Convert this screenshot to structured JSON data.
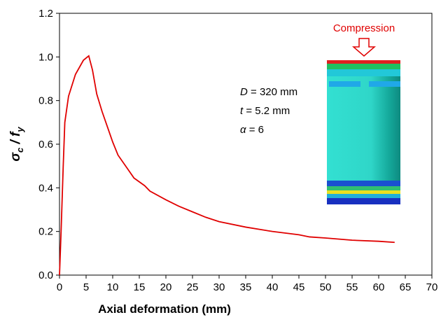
{
  "chart_data": {
    "type": "line",
    "x_label": "Axial deformation (mm)",
    "y_label": {
      "symbol": "σ",
      "sub": "c",
      "sep": " / ",
      "symbol2": "f",
      "sub2": "y"
    },
    "xlim": [
      0,
      70
    ],
    "xticks": [
      0,
      5,
      10,
      15,
      20,
      25,
      30,
      35,
      40,
      45,
      50,
      55,
      60,
      65,
      70
    ],
    "ylim": [
      0,
      1.2
    ],
    "yticks": [
      {
        "value": 0,
        "label": "0.0"
      },
      0.2,
      0.4,
      0.6,
      0.8,
      {
        "value": 1,
        "label": "1.0"
      },
      1.2
    ],
    "series": [
      {
        "color": "#e00000",
        "x": [
          0,
          0.3,
          0.7,
          1,
          1.7,
          3,
          4.5,
          5.5,
          6.2,
          7,
          8,
          9,
          10,
          11,
          13,
          14,
          16,
          17,
          20,
          22.5,
          25,
          27.5,
          30,
          35,
          40,
          45,
          47,
          50,
          55,
          60,
          63
        ],
        "values": [
          0,
          0.2,
          0.5,
          0.7,
          0.82,
          0.92,
          0.985,
          1.005,
          0.94,
          0.83,
          0.75,
          0.68,
          0.61,
          0.55,
          0.48,
          0.445,
          0.41,
          0.385,
          0.345,
          0.315,
          0.29,
          0.265,
          0.245,
          0.22,
          0.2,
          0.185,
          0.175,
          0.17,
          0.16,
          0.155,
          0.15
        ]
      }
    ],
    "annotations": [
      {
        "var": "D",
        "rest": " = 320 mm"
      },
      {
        "var": "t",
        "rest": " = 5.2 mm"
      },
      {
        "var": "α",
        "rest": " = 6"
      }
    ],
    "inset_label": "Compression"
  }
}
